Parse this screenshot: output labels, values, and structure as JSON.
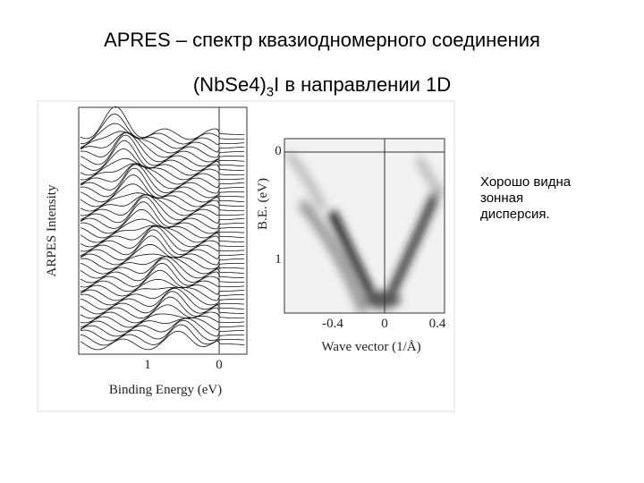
{
  "header": {
    "title_line1": "APRES – спектр квазиодномерного соединения",
    "title_line2": {
      "formula": "(NbSe4)",
      "subscript": "3",
      "rest": "I в направлении 1D"
    }
  },
  "figure": {
    "left_panel": {
      "y_label": "ARPES Intensity",
      "x_label": "Binding Energy (eV)",
      "x_ticks": [
        "1",
        "0"
      ]
    },
    "right_panel": {
      "y_label": "B.E. (eV)",
      "y_ticks": [
        "0",
        "1"
      ],
      "x_label": "Wave vector (1/Å)",
      "x_ticks": [
        "-0.4",
        "0",
        "0.4"
      ]
    }
  },
  "note": "Хорошо видна зонная дисперсия."
}
